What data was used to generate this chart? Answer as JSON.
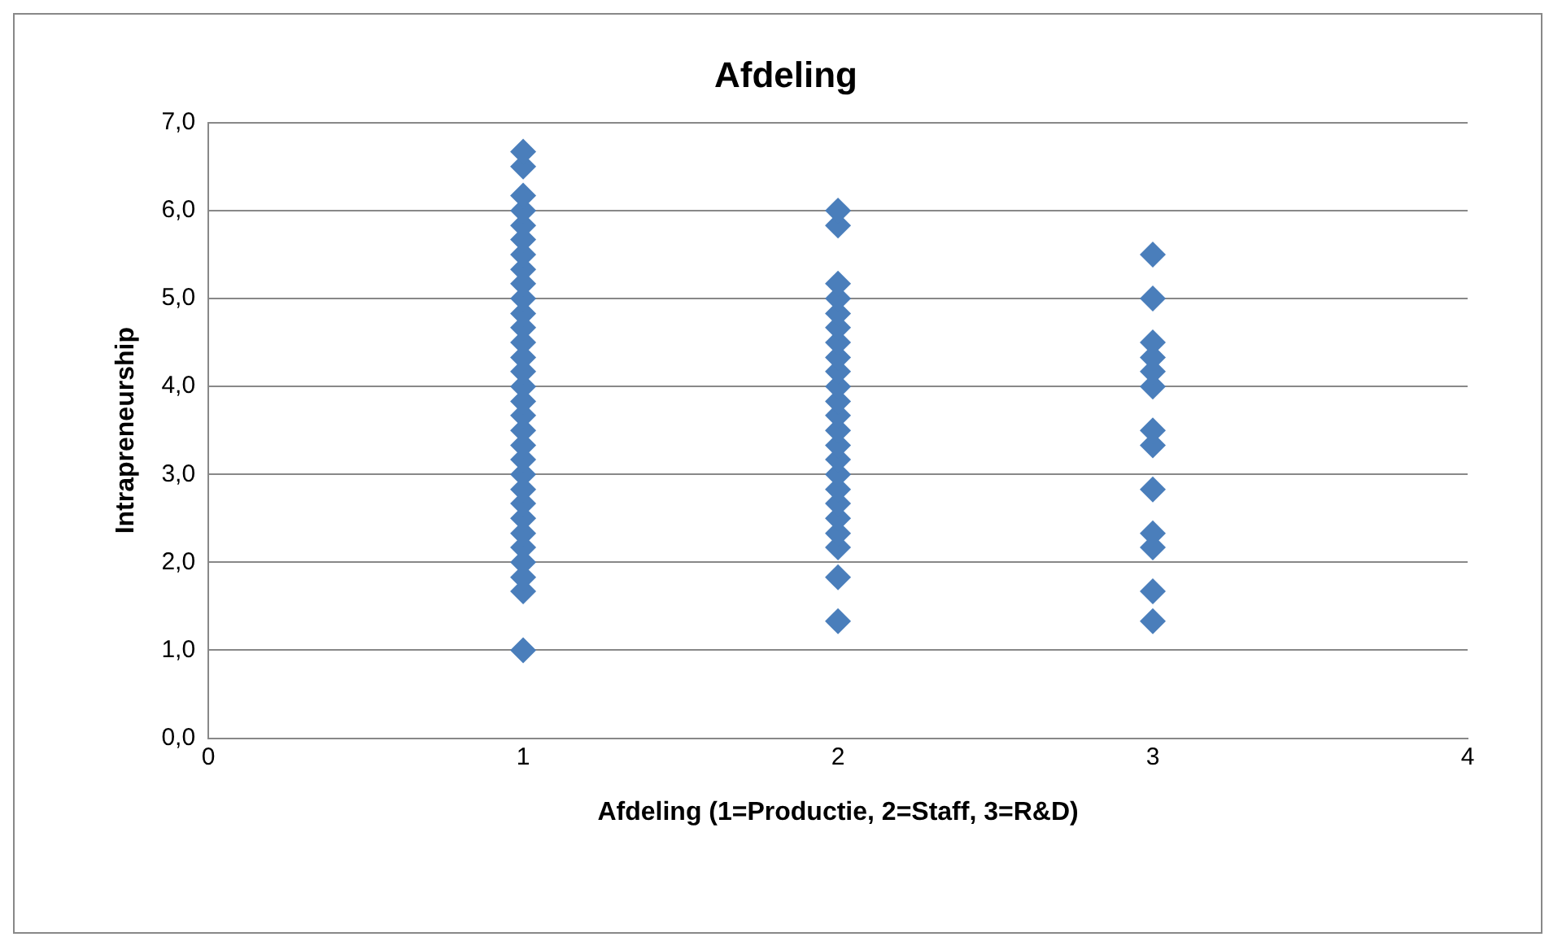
{
  "chart_data": {
    "type": "scatter",
    "title": "Afdeling",
    "xlabel": "Afdeling (1=Productie, 2=Staff, 3=R&D)",
    "ylabel": "Intrapreneurship",
    "series": [
      {
        "color": "#4a7ebb",
        "x": [
          1,
          1,
          1,
          1,
          1,
          1,
          1,
          1,
          1,
          1,
          1,
          1,
          1,
          1,
          1,
          1,
          1,
          1,
          1,
          1,
          1,
          1,
          1,
          1,
          1,
          1,
          1,
          1,
          1,
          1,
          1,
          2,
          2,
          2,
          2,
          2,
          2,
          2,
          2,
          2,
          2,
          2,
          2,
          2,
          2,
          2,
          2,
          2,
          2,
          2,
          2,
          2,
          2,
          2,
          3,
          3,
          3,
          3,
          3,
          3,
          3,
          3,
          3,
          3,
          3,
          3,
          3
        ],
        "values": [
          1.0,
          1.67,
          1.83,
          2.0,
          2.17,
          2.33,
          2.5,
          2.67,
          2.83,
          3.0,
          3.17,
          3.33,
          3.5,
          3.67,
          3.83,
          4.0,
          4.17,
          4.33,
          4.5,
          4.67,
          4.83,
          5.0,
          5.17,
          5.33,
          5.5,
          5.67,
          5.83,
          6.0,
          6.17,
          6.5,
          6.67,
          1.33,
          1.83,
          2.17,
          2.33,
          2.5,
          2.67,
          2.83,
          3.0,
          3.17,
          3.33,
          3.5,
          3.67,
          3.83,
          4.0,
          4.17,
          4.33,
          4.5,
          4.67,
          4.83,
          5.0,
          5.17,
          5.83,
          6.0,
          1.33,
          1.67,
          2.17,
          2.33,
          2.83,
          3.33,
          3.5,
          4.0,
          4.17,
          4.33,
          4.5,
          5.0,
          5.5
        ]
      }
    ],
    "xlim": [
      0,
      4
    ],
    "xticks": [
      0,
      1,
      2,
      3,
      4
    ],
    "ylim": [
      0,
      7
    ],
    "yticks": [
      {
        "value": 0,
        "label": "0,0"
      },
      {
        "value": 1,
        "label": "1,0"
      },
      {
        "value": 2,
        "label": "2,0"
      },
      {
        "value": 3,
        "label": "3,0"
      },
      {
        "value": 4,
        "label": "4,0"
      },
      {
        "value": 5,
        "label": "5,0"
      },
      {
        "value": 6,
        "label": "6,0"
      },
      {
        "value": 7,
        "label": "7,0"
      }
    ],
    "grid": "y",
    "legend": false,
    "marker": "diamond"
  }
}
